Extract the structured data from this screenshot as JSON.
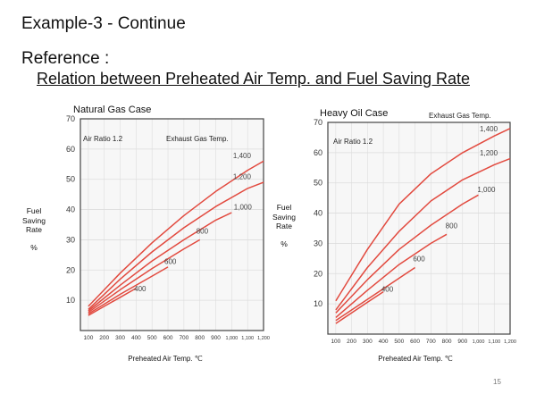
{
  "slide": {
    "title": "Example-3 - Continue",
    "reference_label": "Reference :",
    "reference_subtitle": "Relation between Preheated Air Temp. and Fuel Saving Rate",
    "page_number": "15"
  },
  "colors": {
    "curve": "#e24a3f",
    "frame": "#444444",
    "grid": "#dddddd",
    "plot_bg": "#f7f7f7"
  },
  "chart_data": [
    {
      "type": "line",
      "title": "Natural Gas Case",
      "ylabel": [
        "Fuel",
        "Saving",
        "Rate",
        "",
        "%"
      ],
      "xlabel": "Preheated Air Temp. ℃",
      "annotations": {
        "air_ratio": "Air Ratio 1.2",
        "exhaust_header": "Exhaust Gas Temp."
      },
      "xlim": [
        50,
        1200
      ],
      "ylim": [
        0,
        70
      ],
      "y_ticks": [
        10,
        20,
        30,
        40,
        50,
        60,
        70
      ],
      "x_ticks": [
        100,
        200,
        300,
        400,
        500,
        600,
        700,
        800,
        900,
        1000,
        1100,
        1200
      ],
      "x_tick_labels": [
        "100",
        "200",
        "300",
        "400",
        "500",
        "600",
        "700",
        "800",
        "900",
        "1,000",
        "1,100",
        "1,200"
      ],
      "series": [
        {
          "name": "1,400",
          "x": [
            100,
            300,
            500,
            700,
            900,
            1100,
            1200
          ],
          "y": [
            8,
            19,
            29,
            38,
            46,
            53,
            56
          ]
        },
        {
          "name": "1,200",
          "x": [
            100,
            300,
            500,
            700,
            900,
            1100,
            1200
          ],
          "y": [
            7,
            17,
            26,
            34,
            41,
            47,
            49
          ]
        },
        {
          "name": "1,000",
          "x": [
            100,
            300,
            500,
            700,
            900,
            1000
          ],
          "y": [
            6.5,
            15,
            23,
            30,
            36.5,
            39
          ]
        },
        {
          "name": "800",
          "x": [
            100,
            300,
            500,
            700,
            800
          ],
          "y": [
            6,
            13.5,
            20.5,
            27,
            30
          ]
        },
        {
          "name": "600",
          "x": [
            100,
            300,
            500,
            600
          ],
          "y": [
            5.5,
            12,
            18,
            21
          ]
        },
        {
          "name": "400",
          "x": [
            100,
            200,
            300,
            400
          ],
          "y": [
            5,
            8,
            11,
            14
          ]
        }
      ],
      "series_label_pos": [
        {
          "x": 1065,
          "y": 57
        },
        {
          "x": 1065,
          "y": 50
        },
        {
          "x": 1070,
          "y": 40
        },
        {
          "x": 815,
          "y": 32
        },
        {
          "x": 615,
          "y": 22
        },
        {
          "x": 425,
          "y": 13
        }
      ]
    },
    {
      "type": "line",
      "title": "Heavy Oil Case",
      "ylabel": [
        "Fuel",
        "Saving",
        "Rate",
        "",
        "%"
      ],
      "xlabel": "Preheated Air Temp. ℃",
      "annotations": {
        "air_ratio": "Air Ratio 1.2",
        "exhaust_header": "Exhaust Gas Temp."
      },
      "xlim": [
        50,
        1200
      ],
      "ylim": [
        0,
        70
      ],
      "y_ticks": [
        10,
        20,
        30,
        40,
        50,
        60,
        70
      ],
      "x_ticks": [
        100,
        200,
        300,
        400,
        500,
        600,
        700,
        800,
        900,
        1000,
        1100,
        1200
      ],
      "x_tick_labels": [
        "100",
        "200",
        "300",
        "400",
        "500",
        "600",
        "700",
        "800",
        "900",
        "1,000",
        "1,100",
        "1,200"
      ],
      "series": [
        {
          "name": "1,400",
          "x": [
            100,
            300,
            500,
            700,
            900,
            1100,
            1200
          ],
          "y": [
            11,
            28,
            43,
            53,
            60,
            65.5,
            68
          ]
        },
        {
          "name": "1,200",
          "x": [
            100,
            300,
            500,
            700,
            900,
            1100,
            1200
          ],
          "y": [
            8,
            22,
            34,
            44,
            51,
            56,
            58
          ]
        },
        {
          "name": "1,000",
          "x": [
            100,
            300,
            500,
            700,
            900,
            1000
          ],
          "y": [
            7,
            18,
            28,
            36,
            43,
            46
          ]
        },
        {
          "name": "800",
          "x": [
            100,
            300,
            500,
            700,
            800
          ],
          "y": [
            5.5,
            14.5,
            23,
            30,
            33
          ]
        },
        {
          "name": "600",
          "x": [
            100,
            300,
            500,
            600
          ],
          "y": [
            4.5,
            11.5,
            18.5,
            22
          ]
        },
        {
          "name": "400",
          "x": [
            100,
            200,
            300,
            400
          ],
          "y": [
            3.5,
            7,
            10.5,
            14
          ]
        }
      ],
      "series_label_pos": [
        {
          "x": 1065,
          "y": 67
        },
        {
          "x": 1065,
          "y": 59
        },
        {
          "x": 1050,
          "y": 47
        },
        {
          "x": 830,
          "y": 35
        },
        {
          "x": 625,
          "y": 24
        },
        {
          "x": 425,
          "y": 14
        }
      ]
    }
  ]
}
